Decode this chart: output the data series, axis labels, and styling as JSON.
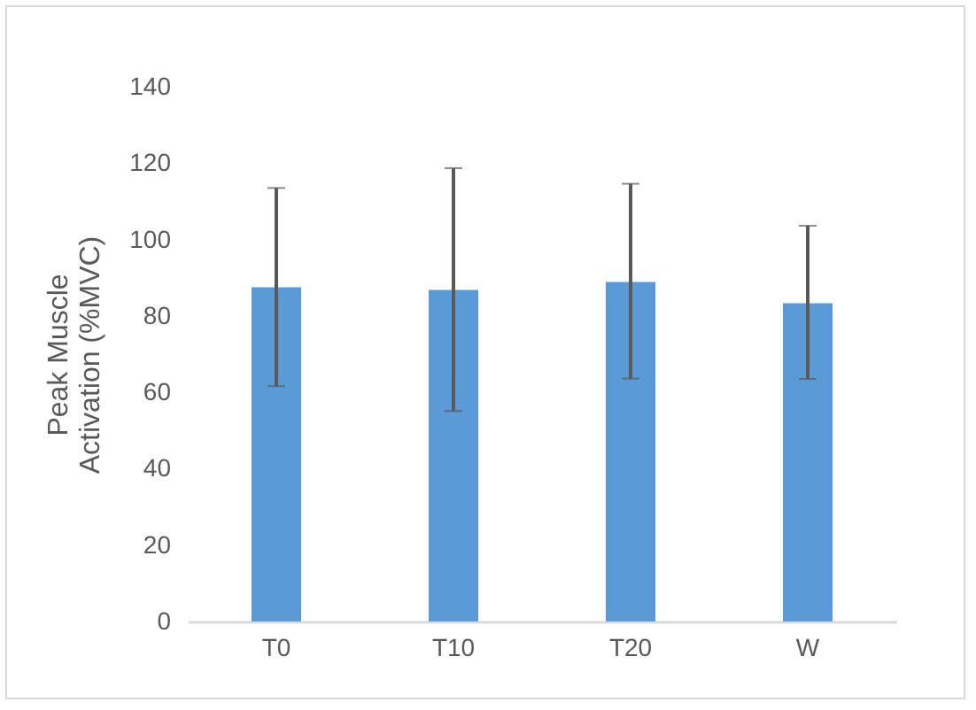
{
  "chart_data": {
    "type": "bar",
    "ylabel": "Peak Muscle Activation (%MVC)",
    "categories": [
      "T0",
      "T10",
      "T20",
      "W"
    ],
    "values": [
      87.5,
      86.8,
      88.9,
      83.3
    ],
    "color": "#5b9bd5",
    "errors": [
      [
        61.6,
        113.5
      ],
      [
        55.1,
        118.7
      ],
      [
        63.6,
        114.6
      ],
      [
        63.5,
        103.6
      ]
    ],
    "ylim": [
      0,
      140
    ],
    "yticks": [
      0,
      20,
      40,
      60,
      80,
      100,
      120,
      140
    ],
    "grid": false
  }
}
